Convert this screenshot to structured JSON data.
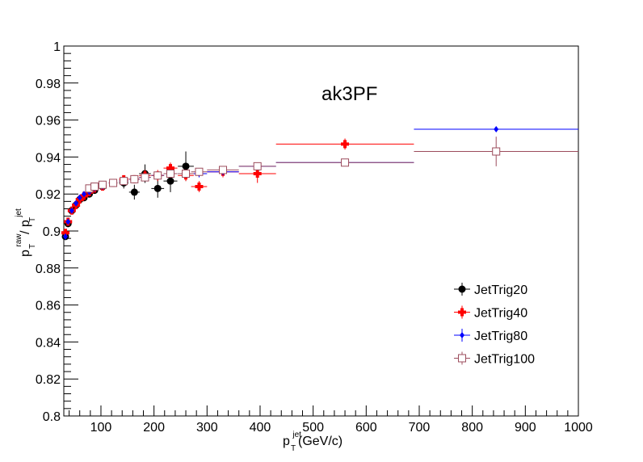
{
  "chart_data": {
    "type": "scatter",
    "title": "",
    "annotation": "ak3PF",
    "xlabel": {
      "base": "p",
      "sub": "T",
      "sup": "jet",
      "suffix": " (GeV/c)"
    },
    "ylabel": {
      "num_base": "p",
      "num_sub": "T",
      "num_sup": "raw",
      "den_base": "p",
      "den_sub": "T",
      "den_sup": "jet"
    },
    "xlim": [
      30,
      1000
    ],
    "ylim": [
      0.8,
      1.0
    ],
    "xticks": [
      100,
      200,
      300,
      400,
      500,
      600,
      700,
      800,
      900,
      1000
    ],
    "yticks": [
      0.8,
      0.82,
      0.84,
      0.86,
      0.88,
      0.9,
      0.92,
      0.94,
      0.96,
      0.98,
      1
    ],
    "ytick_labels": [
      "0.8",
      "0.82",
      "0.84",
      "0.86",
      "0.88",
      "0.9",
      "0.92",
      "0.94",
      "0.96",
      "0.98",
      "1"
    ],
    "grid": false,
    "legend_position": "bottom-right",
    "series": [
      {
        "name": "JetTrig20",
        "color": "#000000",
        "marker": "circle",
        "points": [
          {
            "x": 33,
            "y": 0.897,
            "xerr": 3,
            "yerr": 0.001
          },
          {
            "x": 38,
            "y": 0.904,
            "xerr": 2.5,
            "yerr": 0.001
          },
          {
            "x": 45,
            "y": 0.911,
            "xerr": 3.5,
            "yerr": 0.001
          },
          {
            "x": 53,
            "y": 0.914,
            "xerr": 4,
            "yerr": 0.001
          },
          {
            "x": 60,
            "y": 0.917,
            "xerr": 4,
            "yerr": 0.001
          },
          {
            "x": 68,
            "y": 0.918,
            "xerr": 4,
            "yerr": 0.001
          },
          {
            "x": 78,
            "y": 0.92,
            "xerr": 5,
            "yerr": 0.001
          },
          {
            "x": 88,
            "y": 0.922,
            "xerr": 6,
            "yerr": 0.001
          },
          {
            "x": 103,
            "y": 0.924,
            "xerr": 7,
            "yerr": 0.002
          },
          {
            "x": 123,
            "y": 0.926,
            "xerr": 8,
            "yerr": 0.002
          },
          {
            "x": 143,
            "y": 0.926,
            "xerr": 9,
            "yerr": 0.003
          },
          {
            "x": 163,
            "y": 0.921,
            "xerr": 10,
            "yerr": 0.004
          },
          {
            "x": 183,
            "y": 0.931,
            "xerr": 11,
            "yerr": 0.005
          },
          {
            "x": 207,
            "y": 0.923,
            "xerr": 12,
            "yerr": 0.005
          },
          {
            "x": 231,
            "y": 0.927,
            "xerr": 13,
            "yerr": 0.006
          },
          {
            "x": 260,
            "y": 0.935,
            "xerr": 15,
            "yerr": 0.008
          }
        ]
      },
      {
        "name": "JetTrig40",
        "color": "#ff0000",
        "marker": "cross",
        "points": [
          {
            "x": 33,
            "y": 0.899,
            "xerr": 3,
            "yerr": 0.001
          },
          {
            "x": 38,
            "y": 0.905,
            "xerr": 2.5,
            "yerr": 0.001
          },
          {
            "x": 45,
            "y": 0.911,
            "xerr": 3.5,
            "yerr": 0.001
          },
          {
            "x": 53,
            "y": 0.914,
            "xerr": 4,
            "yerr": 0.001
          },
          {
            "x": 60,
            "y": 0.917,
            "xerr": 4,
            "yerr": 0.001
          },
          {
            "x": 68,
            "y": 0.919,
            "xerr": 4,
            "yerr": 0.001
          },
          {
            "x": 78,
            "y": 0.921,
            "xerr": 5,
            "yerr": 0.001
          },
          {
            "x": 88,
            "y": 0.923,
            "xerr": 6,
            "yerr": 0.001
          },
          {
            "x": 103,
            "y": 0.924,
            "xerr": 7,
            "yerr": 0.001
          },
          {
            "x": 123,
            "y": 0.926,
            "xerr": 8,
            "yerr": 0.001
          },
          {
            "x": 143,
            "y": 0.928,
            "xerr": 9,
            "yerr": 0.002
          },
          {
            "x": 163,
            "y": 0.928,
            "xerr": 10,
            "yerr": 0.002
          },
          {
            "x": 183,
            "y": 0.93,
            "xerr": 11,
            "yerr": 0.003
          },
          {
            "x": 207,
            "y": 0.93,
            "xerr": 12,
            "yerr": 0.003
          },
          {
            "x": 231,
            "y": 0.934,
            "xerr": 13,
            "yerr": 0.003
          },
          {
            "x": 260,
            "y": 0.93,
            "xerr": 15,
            "yerr": 0.003
          },
          {
            "x": 285,
            "y": 0.924,
            "xerr": 15,
            "yerr": 0.003
          },
          {
            "x": 330,
            "y": 0.932,
            "xerr": 30,
            "yerr": 0.003
          },
          {
            "x": 395,
            "y": 0.931,
            "xerr": 35,
            "yerr": 0.005
          },
          {
            "x": 560,
            "y": 0.947,
            "xerr": 130,
            "yerr": 0.003
          }
        ]
      },
      {
        "name": "JetTrig80",
        "color": "#0000ff",
        "marker": "diamond",
        "points": [
          {
            "x": 33,
            "y": 0.897,
            "xerr": 3,
            "yerr": 0.001
          },
          {
            "x": 38,
            "y": 0.905,
            "xerr": 2.5,
            "yerr": 0.001
          },
          {
            "x": 45,
            "y": 0.911,
            "xerr": 3.5,
            "yerr": 0.001
          },
          {
            "x": 53,
            "y": 0.915,
            "xerr": 4,
            "yerr": 0.001
          },
          {
            "x": 60,
            "y": 0.918,
            "xerr": 4,
            "yerr": 0.001
          },
          {
            "x": 68,
            "y": 0.92,
            "xerr": 4,
            "yerr": 0.001
          },
          {
            "x": 78,
            "y": 0.921,
            "xerr": 5,
            "yerr": 0.001
          },
          {
            "x": 88,
            "y": 0.923,
            "xerr": 6,
            "yerr": 0.001
          },
          {
            "x": 103,
            "y": 0.924,
            "xerr": 7,
            "yerr": 0.001
          },
          {
            "x": 123,
            "y": 0.926,
            "xerr": 8,
            "yerr": 0.001
          },
          {
            "x": 143,
            "y": 0.927,
            "xerr": 9,
            "yerr": 0.001
          },
          {
            "x": 163,
            "y": 0.928,
            "xerr": 10,
            "yerr": 0.001
          },
          {
            "x": 183,
            "y": 0.929,
            "xerr": 11,
            "yerr": 0.002
          },
          {
            "x": 207,
            "y": 0.93,
            "xerr": 12,
            "yerr": 0.002
          },
          {
            "x": 231,
            "y": 0.931,
            "xerr": 13,
            "yerr": 0.002
          },
          {
            "x": 260,
            "y": 0.931,
            "xerr": 15,
            "yerr": 0.002
          },
          {
            "x": 285,
            "y": 0.931,
            "xerr": 15,
            "yerr": 0.002
          },
          {
            "x": 330,
            "y": 0.932,
            "xerr": 30,
            "yerr": 0.002
          },
          {
            "x": 395,
            "y": 0.935,
            "xerr": 35,
            "yerr": 0.002
          },
          {
            "x": 560,
            "y": 0.937,
            "xerr": 130,
            "yerr": 0.001
          },
          {
            "x": 845,
            "y": 0.955,
            "xerr": 155,
            "yerr": 0.001
          }
        ]
      },
      {
        "name": "JetTrig100",
        "color": "#9c4c5c",
        "marker": "open-square",
        "points": [
          {
            "x": 78,
            "y": 0.923,
            "xerr": 5,
            "yerr": 0.001
          },
          {
            "x": 88,
            "y": 0.924,
            "xerr": 6,
            "yerr": 0.001
          },
          {
            "x": 103,
            "y": 0.925,
            "xerr": 7,
            "yerr": 0.001
          },
          {
            "x": 123,
            "y": 0.926,
            "xerr": 8,
            "yerr": 0.001
          },
          {
            "x": 143,
            "y": 0.927,
            "xerr": 9,
            "yerr": 0.001
          },
          {
            "x": 163,
            "y": 0.928,
            "xerr": 10,
            "yerr": 0.001
          },
          {
            "x": 183,
            "y": 0.929,
            "xerr": 11,
            "yerr": 0.001
          },
          {
            "x": 207,
            "y": 0.93,
            "xerr": 12,
            "yerr": 0.001
          },
          {
            "x": 231,
            "y": 0.931,
            "xerr": 13,
            "yerr": 0.001
          },
          {
            "x": 260,
            "y": 0.931,
            "xerr": 15,
            "yerr": 0.001
          },
          {
            "x": 285,
            "y": 0.932,
            "xerr": 15,
            "yerr": 0.001
          },
          {
            "x": 330,
            "y": 0.933,
            "xerr": 30,
            "yerr": 0.001
          },
          {
            "x": 395,
            "y": 0.935,
            "xerr": 35,
            "yerr": 0.001
          },
          {
            "x": 560,
            "y": 0.937,
            "xerr": 130,
            "yerr": 0.001
          },
          {
            "x": 845,
            "y": 0.943,
            "xerr": 155,
            "yerr": 0.008
          }
        ]
      }
    ]
  }
}
